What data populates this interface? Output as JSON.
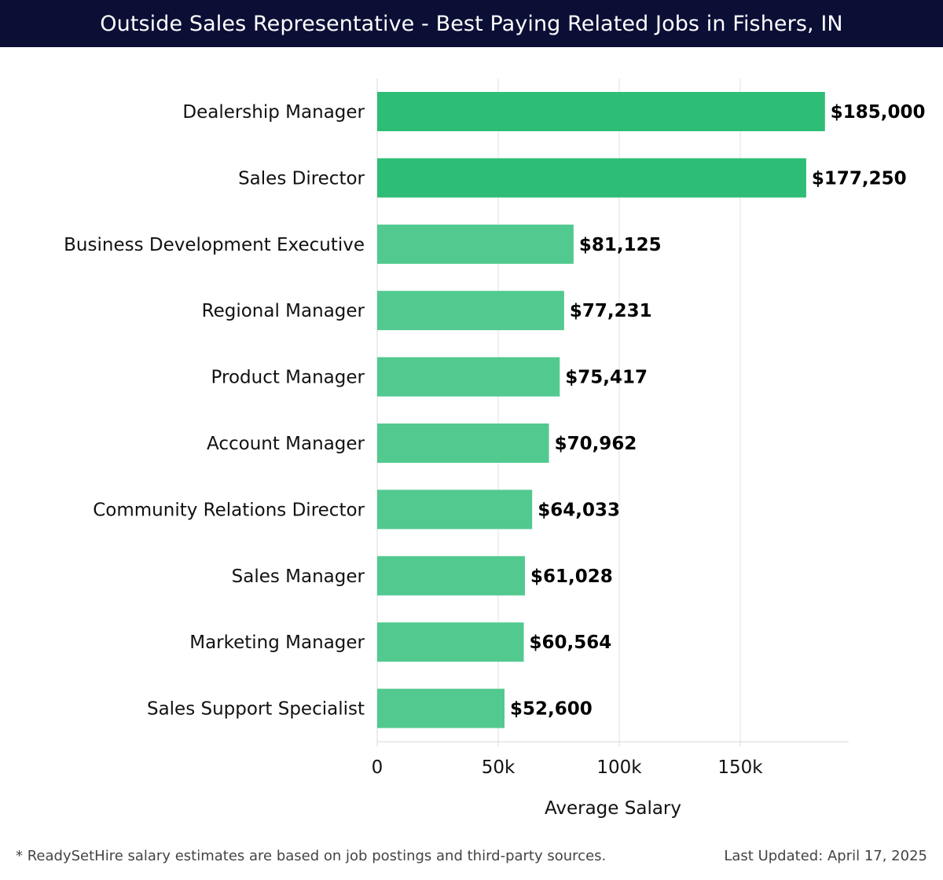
{
  "header": {
    "title": "Outside Sales Representative - Best Paying Related Jobs in Fishers, IN"
  },
  "footer": {
    "note": "* ReadySetHire salary estimates are based on job postings and third-party sources.",
    "updated": "Last Updated: April 17, 2025"
  },
  "colors": {
    "title_bg": "#0b0f35",
    "bar_top": "#2ebd76",
    "bar_rest": "#52c98f",
    "grid": "#e0e0e0"
  },
  "chart_data": {
    "type": "bar",
    "orientation": "horizontal",
    "title": "Outside Sales Representative - Best Paying Related Jobs in Fishers, IN",
    "xlabel": "Average Salary",
    "ylabel": "",
    "xlim": [
      0,
      195000
    ],
    "xticks": [
      0,
      50000,
      100000,
      150000
    ],
    "xtick_labels": [
      "0",
      "50k",
      "100k",
      "150k"
    ],
    "grid": true,
    "categories": [
      "Dealership Manager",
      "Sales Director",
      "Business Development Executive",
      "Regional Manager",
      "Product Manager",
      "Account Manager",
      "Community Relations Director",
      "Sales Manager",
      "Marketing Manager",
      "Sales Support Specialist"
    ],
    "values": [
      185000,
      177250,
      81125,
      77231,
      75417,
      70962,
      64033,
      61028,
      60564,
      52600
    ],
    "value_labels": [
      "$185,000",
      "$177,250",
      "$81,125",
      "$77,231",
      "$75,417",
      "$70,962",
      "$64,033",
      "$61,028",
      "$60,564",
      "$52,600"
    ],
    "highlight_top": 2
  }
}
